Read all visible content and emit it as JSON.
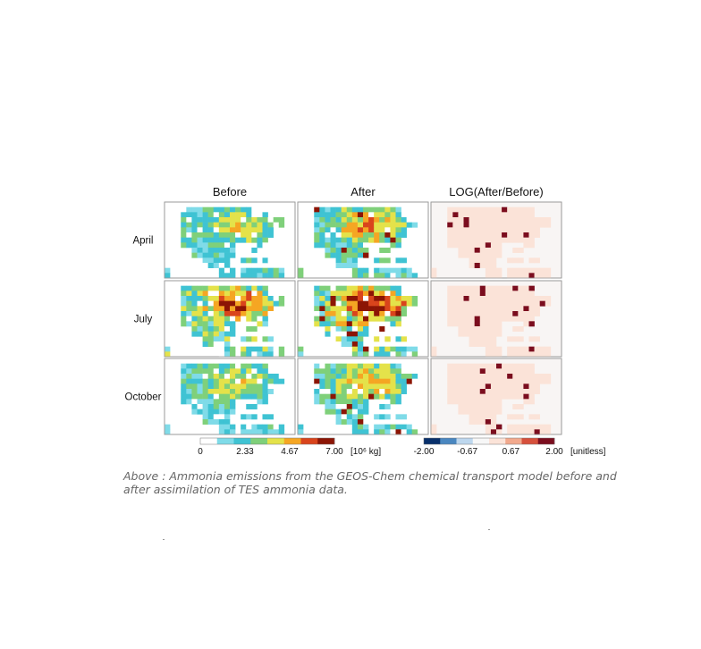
{
  "chart_data": {
    "type": "heatmap",
    "columns": [
      "Before",
      "After",
      "LOG(After/Before)"
    ],
    "rows": [
      "April",
      "July",
      "October"
    ],
    "colorbars": [
      {
        "ticks": [
          "0",
          "2.33",
          "4.67",
          "7.00"
        ],
        "unit": "[10⁶ kg]",
        "range": [
          0,
          7.0
        ],
        "colors": [
          "#ffffff",
          "#7fdbe8",
          "#3fc3d3",
          "#7fd07a",
          "#e4e24a",
          "#f5a623",
          "#d9441c",
          "#8c1505"
        ]
      },
      {
        "ticks": [
          "-2.00",
          "-0.67",
          "0.67",
          "2.00"
        ],
        "unit": "[unitless]",
        "range": [
          -2.0,
          2.0
        ],
        "colors": [
          "#08306b",
          "#4a87c0",
          "#bdd7ee",
          "#f7f7f7",
          "#fbe3d8",
          "#f2a98d",
          "#d6503c",
          "#7b0d1e"
        ]
      }
    ],
    "panel_intensity": [
      [
        0.55,
        0.7,
        0.35
      ],
      [
        0.85,
        1.0,
        0.45
      ],
      [
        0.55,
        0.65,
        0.3
      ]
    ]
  },
  "caption": "Above : Ammonia emissions from the GEOS-Chem chemical transport model before and after assimilation of TES ammonia data."
}
